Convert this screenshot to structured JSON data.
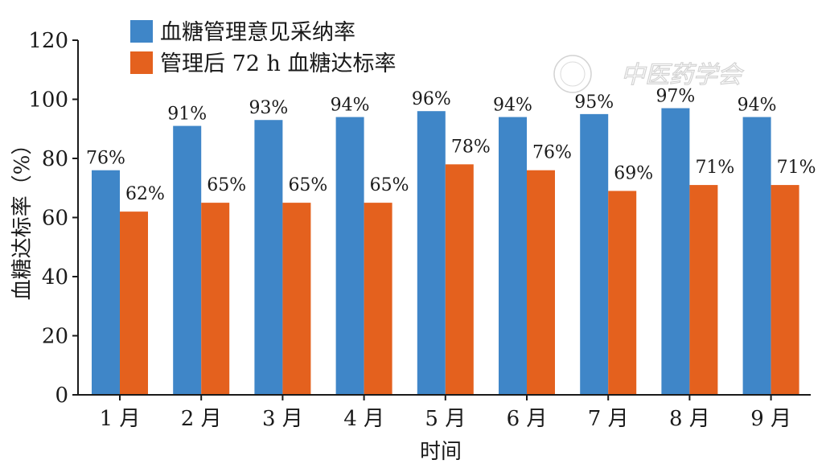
{
  "chart_data": {
    "type": "bar",
    "categories": [
      "1 月",
      "2 月",
      "3 月",
      "4 月",
      "5 月",
      "6 月",
      "7 月",
      "8 月",
      "9 月"
    ],
    "series": [
      {
        "name": "血糖管理意见采纳率",
        "color": "#3F86C8",
        "values": [
          76,
          91,
          93,
          94,
          96,
          94,
          95,
          97,
          94
        ],
        "labels": [
          "76%",
          "91%",
          "93%",
          "94%",
          "96%",
          "94%",
          "95%",
          "97%",
          "94%"
        ]
      },
      {
        "name": "管理后 72 h 血糖达标率",
        "color": "#E4611E",
        "values": [
          62,
          65,
          65,
          65,
          78,
          76,
          69,
          71,
          71
        ],
        "labels": [
          "62%",
          "65%",
          "65%",
          "65%",
          "78%",
          "76%",
          "69%",
          "71%",
          "71%"
        ]
      }
    ],
    "xlabel": "时间",
    "ylabel": "血糖达标率（%）",
    "ylim": [
      0,
      120
    ],
    "yticks": [
      0,
      20,
      40,
      60,
      80,
      100,
      120
    ],
    "grid": false,
    "legend_position": "top-center"
  },
  "watermark": {
    "text": "中医药学会",
    "icon": "seal-emblem-icon"
  }
}
